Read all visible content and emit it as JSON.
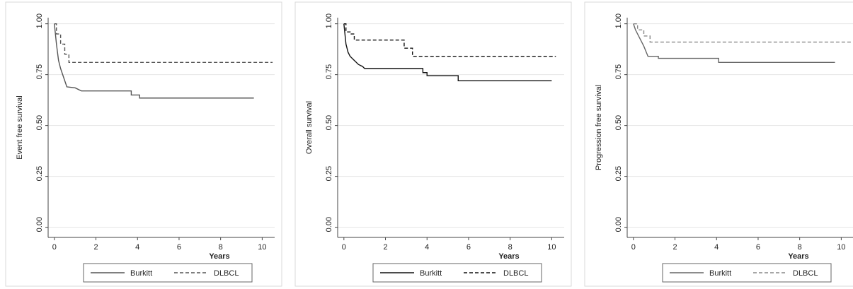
{
  "chart_data": [
    {
      "type": "line",
      "y_label": "Event free survival",
      "x_label": "Years",
      "xlim": [
        -0.3,
        10.6
      ],
      "ylim": [
        -0.05,
        1.03
      ],
      "xticks": [
        0,
        2,
        4,
        6,
        8,
        10
      ],
      "yticks": [
        {
          "value": 0,
          "label": "0.00"
        },
        {
          "value": 0.25,
          "label": "0.25"
        },
        {
          "value": 0.5,
          "label": "0.50"
        },
        {
          "value": 0.75,
          "label": "0.75"
        },
        {
          "value": 1,
          "label": "1.00"
        }
      ],
      "grid": true,
      "series": [
        {
          "name": "Burkitt",
          "color": "#555555",
          "style": "solid",
          "x": [
            0,
            0.05,
            0.1,
            0.15,
            0.2,
            0.3,
            0.4,
            0.5,
            0.6,
            1.0,
            1.3,
            3.7,
            3.7,
            4.1,
            4.1,
            9.6
          ],
          "values": [
            1,
            0.95,
            0.9,
            0.86,
            0.82,
            0.78,
            0.75,
            0.72,
            0.69,
            0.685,
            0.67,
            0.67,
            0.65,
            0.65,
            0.635,
            0.635
          ]
        },
        {
          "name": "DLBCL",
          "color": "#555555",
          "style": "dashed",
          "x": [
            0,
            0.1,
            0.1,
            0.3,
            0.3,
            0.5,
            0.5,
            0.7,
            0.7,
            10.5
          ],
          "values": [
            1,
            1,
            0.95,
            0.95,
            0.9,
            0.9,
            0.85,
            0.85,
            0.81,
            0.81
          ]
        }
      ]
    },
    {
      "type": "line",
      "y_label": "Overall survival",
      "x_label": "Years",
      "xlim": [
        -0.3,
        10.6
      ],
      "ylim": [
        -0.05,
        1.03
      ],
      "xticks": [
        0,
        2,
        4,
        6,
        8,
        10
      ],
      "yticks": [
        {
          "value": 0,
          "label": "0.00"
        },
        {
          "value": 0.25,
          "label": "0.25"
        },
        {
          "value": 0.5,
          "label": "0.50"
        },
        {
          "value": 0.75,
          "label": "0.75"
        },
        {
          "value": 1,
          "label": "1.00"
        }
      ],
      "grid": true,
      "series": [
        {
          "name": "Burkitt",
          "color": "#111111",
          "style": "solid",
          "x": [
            0,
            0.05,
            0.1,
            0.2,
            0.3,
            0.5,
            0.7,
            0.9,
            1.0,
            3.8,
            3.8,
            4.0,
            4.0,
            5.5,
            5.5,
            10
          ],
          "values": [
            1,
            0.95,
            0.9,
            0.86,
            0.84,
            0.82,
            0.8,
            0.79,
            0.78,
            0.78,
            0.76,
            0.76,
            0.745,
            0.745,
            0.72,
            0.72
          ]
        },
        {
          "name": "DLBCL",
          "color": "#111111",
          "style": "dashed",
          "x": [
            0,
            0.1,
            0.1,
            0.3,
            0.3,
            0.5,
            0.5,
            2.9,
            2.9,
            3.3,
            3.3,
            10.2
          ],
          "values": [
            1,
            1,
            0.96,
            0.96,
            0.95,
            0.95,
            0.92,
            0.92,
            0.88,
            0.88,
            0.84,
            0.84
          ]
        }
      ]
    },
    {
      "type": "line",
      "y_label": "Progression free survival",
      "x_label": "Years",
      "xlim": [
        -0.3,
        10.6
      ],
      "ylim": [
        -0.05,
        1.03
      ],
      "xticks": [
        0,
        2,
        4,
        6,
        8,
        10
      ],
      "yticks": [
        {
          "value": 0,
          "label": "0.00"
        },
        {
          "value": 0.25,
          "label": "0.25"
        },
        {
          "value": 0.5,
          "label": "0.50"
        },
        {
          "value": 0.75,
          "label": "0.75"
        },
        {
          "value": 1,
          "label": "1.00"
        }
      ],
      "grid": true,
      "series": [
        {
          "name": "Burkitt",
          "color": "#666666",
          "style": "solid",
          "x": [
            0,
            0.1,
            0.3,
            0.5,
            0.7,
            1.2,
            1.2,
            4.1,
            4.1,
            9.7
          ],
          "values": [
            1,
            0.97,
            0.93,
            0.89,
            0.84,
            0.84,
            0.83,
            0.83,
            0.81,
            0.81
          ]
        },
        {
          "name": "DLBCL",
          "color": "#888888",
          "style": "dashed",
          "x": [
            0,
            0.2,
            0.2,
            0.5,
            0.5,
            0.8,
            0.8,
            10.5
          ],
          "values": [
            1,
            1,
            0.97,
            0.97,
            0.94,
            0.94,
            0.91,
            0.91
          ]
        }
      ]
    }
  ]
}
